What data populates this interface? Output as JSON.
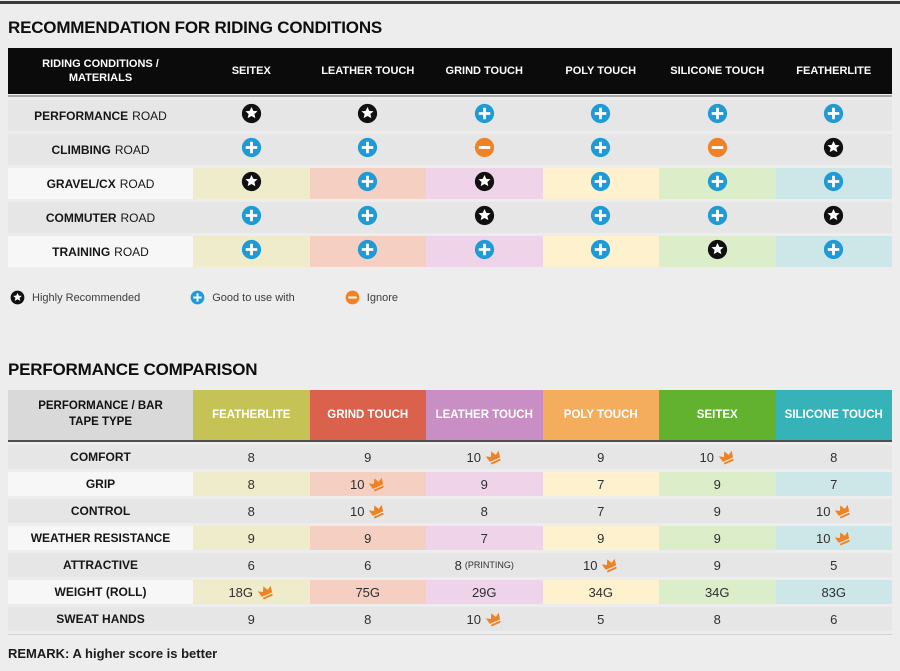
{
  "colors": {
    "accent_plus": "#1e9bd7",
    "accent_minus": "#ef8225",
    "accent_star": "#101010",
    "crown": "#ef8225",
    "row_gray": "#e6e6e6",
    "row_light": "#f7f7f7",
    "column_tints": [
      "#eeeccb",
      "#f5d0c2",
      "#eed3e9",
      "#fdf2cd",
      "#dcedca",
      "#cde7e9"
    ]
  },
  "chart_data": [
    {
      "type": "table",
      "title": "RECOMMENDATION FOR RIDING CONDITIONS",
      "corner_label": "RIDING CONDITIONS / MATERIALS",
      "columns": [
        "SEITEX",
        "LEATHER TOUCH",
        "GRIND TOUCH",
        "POLY TOUCH",
        "SILICONE TOUCH",
        "FEATHERLITE"
      ],
      "rows": [
        {
          "label_bold": "PERFORMANCE",
          "label_rest": "ROAD",
          "tinted": false,
          "cells": [
            "star",
            "star",
            "plus",
            "plus",
            "plus",
            "plus"
          ]
        },
        {
          "label_bold": "CLIMBING",
          "label_rest": "ROAD",
          "tinted": false,
          "cells": [
            "plus",
            "plus",
            "minus",
            "plus",
            "minus",
            "star"
          ]
        },
        {
          "label_bold": "GRAVEL/CX",
          "label_rest": "ROAD",
          "tinted": true,
          "cells": [
            "star",
            "plus",
            "star",
            "plus",
            "plus",
            "plus"
          ]
        },
        {
          "label_bold": "COMMUTER",
          "label_rest": "ROAD",
          "tinted": false,
          "cells": [
            "plus",
            "plus",
            "star",
            "plus",
            "plus",
            "star"
          ]
        },
        {
          "label_bold": "TRAINING",
          "label_rest": "ROAD",
          "tinted": true,
          "cells": [
            "plus",
            "plus",
            "plus",
            "plus",
            "star",
            "plus"
          ]
        }
      ],
      "legend": [
        {
          "icon": "star",
          "label": "Highly Recommended"
        },
        {
          "icon": "plus",
          "label": "Good to use with"
        },
        {
          "icon": "minus",
          "label": "Ignore"
        }
      ]
    },
    {
      "type": "table",
      "title": "PERFORMANCE COMPARISON",
      "corner_label": "PERFORMANCE / BAR TAPE TYPE",
      "columns": [
        {
          "label": "FEATHERLITE",
          "color": "#c5c356"
        },
        {
          "label": "GRIND TOUCH",
          "color": "#da614c"
        },
        {
          "label": "LEATHER TOUCH",
          "color": "#c98ec4"
        },
        {
          "label": "POLY TOUCH",
          "color": "#f4ad5d"
        },
        {
          "label": "SEITEX",
          "color": "#62b230"
        },
        {
          "label": "SILICONE TOUCH",
          "color": "#36b3b9"
        }
      ],
      "rows": [
        {
          "label": "COMFORT",
          "tinted": false,
          "cells": [
            {
              "value": "8"
            },
            {
              "value": "9"
            },
            {
              "value": "10",
              "crown": true
            },
            {
              "value": "9"
            },
            {
              "value": "10",
              "crown": true
            },
            {
              "value": "8"
            }
          ]
        },
        {
          "label": "GRIP",
          "tinted": true,
          "cells": [
            {
              "value": "8"
            },
            {
              "value": "10",
              "crown": true
            },
            {
              "value": "9"
            },
            {
              "value": "7"
            },
            {
              "value": "9"
            },
            {
              "value": "7"
            }
          ]
        },
        {
          "label": "CONTROL",
          "tinted": false,
          "cells": [
            {
              "value": "8"
            },
            {
              "value": "10",
              "crown": true
            },
            {
              "value": "8"
            },
            {
              "value": "7"
            },
            {
              "value": "9"
            },
            {
              "value": "10",
              "crown": true
            }
          ]
        },
        {
          "label": "WEATHER RESISTANCE",
          "tinted": true,
          "cells": [
            {
              "value": "9"
            },
            {
              "value": "9"
            },
            {
              "value": "7"
            },
            {
              "value": "9"
            },
            {
              "value": "9"
            },
            {
              "value": "10",
              "crown": true
            }
          ]
        },
        {
          "label": "ATTRACTIVE",
          "tinted": false,
          "cells": [
            {
              "value": "6"
            },
            {
              "value": "6"
            },
            {
              "value": "8",
              "suffix": "(PRINTING)"
            },
            {
              "value": "10",
              "crown": true
            },
            {
              "value": "9"
            },
            {
              "value": "5"
            }
          ]
        },
        {
          "label": "WEIGHT (ROLL)",
          "tinted": true,
          "cells": [
            {
              "value": "18G",
              "crown": true
            },
            {
              "value": "75G"
            },
            {
              "value": "29G"
            },
            {
              "value": "34G"
            },
            {
              "value": "34G"
            },
            {
              "value": "83G"
            }
          ]
        },
        {
          "label": "SWEAT HANDS",
          "tinted": false,
          "cells": [
            {
              "value": "9"
            },
            {
              "value": "8"
            },
            {
              "value": "10",
              "crown": true
            },
            {
              "value": "5"
            },
            {
              "value": "8"
            },
            {
              "value": "6"
            }
          ]
        }
      ],
      "remark": "REMARK: A higher score is better"
    }
  ]
}
